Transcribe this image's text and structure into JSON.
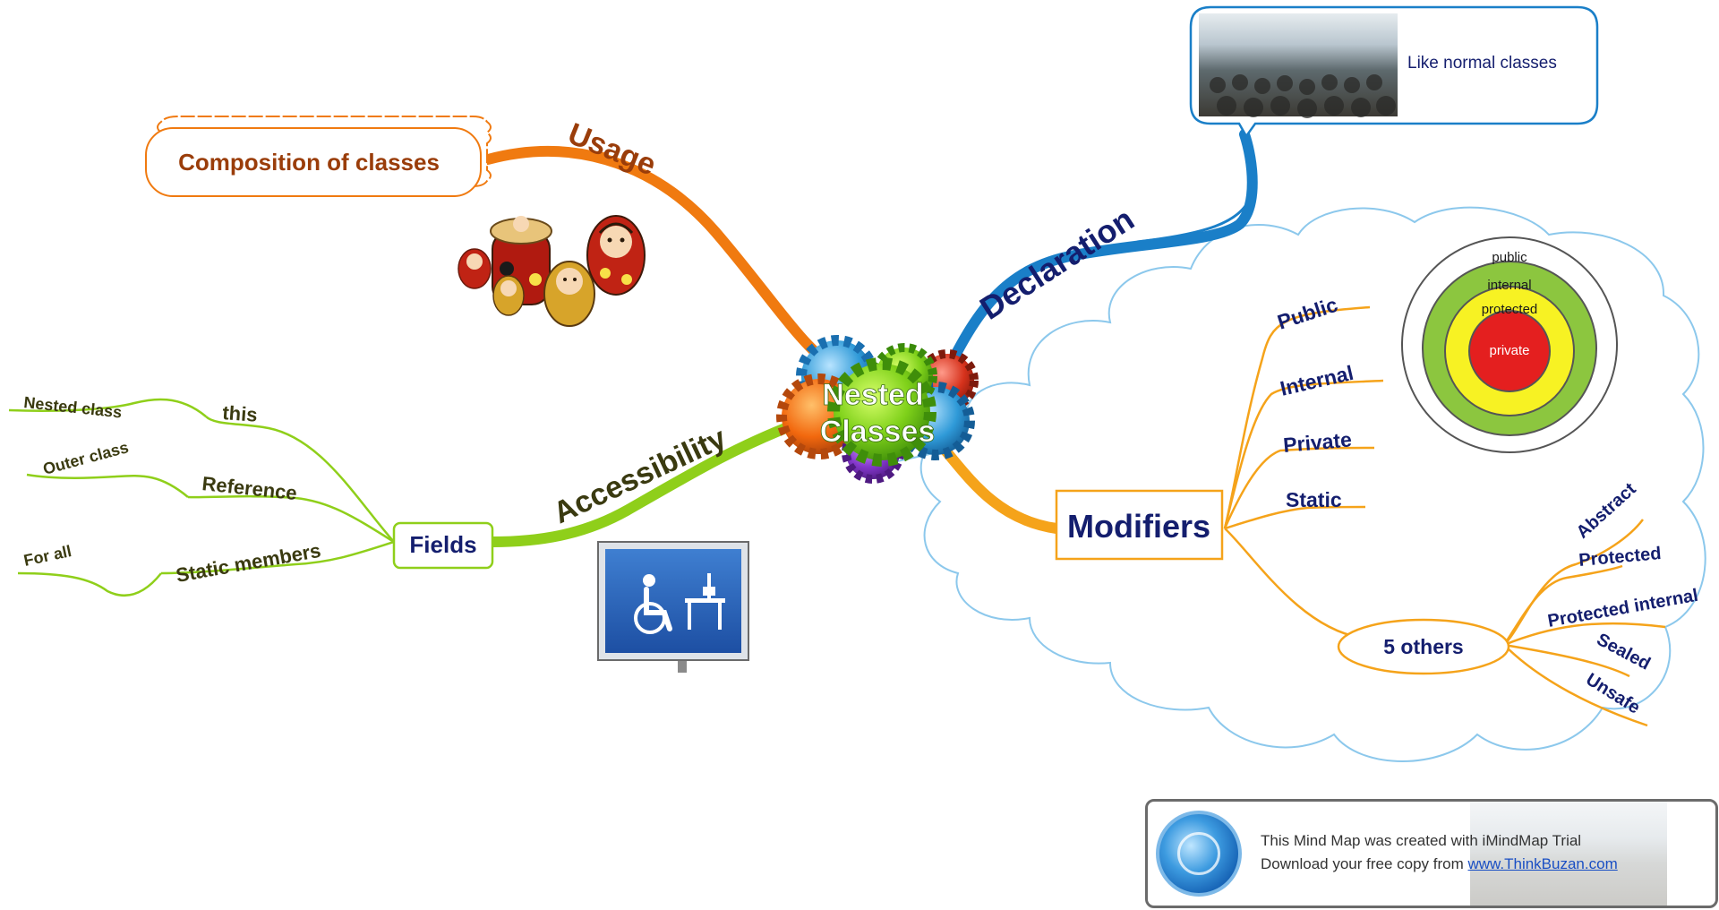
{
  "central_topic": {
    "line1": "Nested",
    "line2": "Classes"
  },
  "branches": {
    "usage": {
      "label": "Usage",
      "color": "#f07a10",
      "child": "Composition of classes"
    },
    "declaration": {
      "label": "Declaration",
      "color": "#1a7fc8",
      "child": "Like normal classes"
    },
    "accessibility": {
      "label": "Accessibility",
      "color": "#8fcf1a",
      "fields": {
        "label": "Fields",
        "children": [
          {
            "label": "this",
            "sub": "Nested class"
          },
          {
            "label": "Reference",
            "sub": "Outer class"
          },
          {
            "label": "Static members",
            "sub": "For all"
          }
        ]
      }
    },
    "modifiers": {
      "label": "Modifiers",
      "color": "#f5a31a",
      "items": [
        "Public",
        "Internal",
        "Private",
        "Static"
      ],
      "others": {
        "label": "5 others",
        "items": [
          "Abstract",
          "Protected",
          "Protected internal",
          "Sealed",
          "Unsafe"
        ]
      },
      "access_rings": [
        "public",
        "internal",
        "protected",
        "private"
      ]
    }
  },
  "colors": {
    "text_navy": "#141e6e",
    "text_dark": "#3a3a10",
    "usage_text": "#9a3d0a"
  },
  "footer": {
    "line1": "This Mind Map was created with iMindMap Trial",
    "line2_prefix": "Download your free copy from ",
    "link": "www.ThinkBuzan.com"
  }
}
